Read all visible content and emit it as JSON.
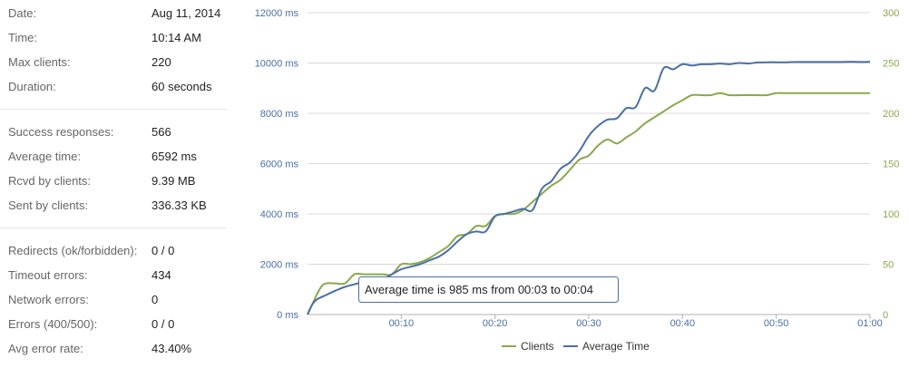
{
  "stats": {
    "general": [
      {
        "label": "Date:",
        "value": "Aug 11, 2014"
      },
      {
        "label": "Time:",
        "value": "10:14 AM"
      },
      {
        "label": "Max clients:",
        "value": "220"
      },
      {
        "label": "Duration:",
        "value": "60 seconds"
      }
    ],
    "responses": [
      {
        "label": "Success responses:",
        "value": "566"
      },
      {
        "label": "Average time:",
        "value": "6592 ms"
      },
      {
        "label": "Rcvd by clients:",
        "value": "9.39 MB"
      },
      {
        "label": "Sent by clients:",
        "value": "336.33 KB"
      }
    ],
    "errors": [
      {
        "label": "Redirects (ok/forbidden):",
        "value": "0 / 0"
      },
      {
        "label": "Timeout errors:",
        "value": "434"
      },
      {
        "label": "Network errors:",
        "value": "0"
      },
      {
        "label": "Errors (400/500):",
        "value": "0 / 0"
      },
      {
        "label": "Avg error rate:",
        "value": "43.40%"
      }
    ]
  },
  "colors": {
    "clients": "#8aa84b",
    "average_time": "#4a6fa5",
    "left_axis_text": "#4a6fa5",
    "right_axis_text": "#8aa84b",
    "grid": "#d9d9d9"
  },
  "chart_data": {
    "type": "line",
    "x_ticks": [
      "00:10",
      "00:20",
      "00:30",
      "00:40",
      "00:50",
      "01:00"
    ],
    "x_tick_values": [
      10,
      20,
      30,
      40,
      50,
      60
    ],
    "xlim": [
      0,
      60
    ],
    "y_left": {
      "ticks": [
        "0 ms",
        "2000 ms",
        "4000 ms",
        "6000 ms",
        "8000 ms",
        "10000 ms",
        "12000 ms"
      ],
      "lim": [
        0,
        12000
      ]
    },
    "y_right": {
      "ticks": [
        "0",
        "50",
        "100",
        "150",
        "200",
        "250",
        "300"
      ],
      "lim": [
        0,
        300
      ]
    },
    "grid": true,
    "legend_position": "bottom",
    "series": [
      {
        "name": "Clients",
        "axis": "right",
        "x": [
          0,
          0.5,
          1,
          1.5,
          2,
          3,
          4,
          5,
          6,
          7,
          8,
          9,
          10,
          11,
          12,
          13,
          14,
          15,
          16,
          17,
          18,
          19,
          20,
          21,
          22,
          23,
          24,
          25,
          26,
          27,
          28,
          29,
          30,
          31,
          32,
          33,
          34,
          35,
          36,
          37,
          38,
          39,
          40,
          41,
          42,
          43,
          44,
          45,
          46,
          47,
          48,
          49,
          50,
          51,
          52,
          53,
          54,
          55,
          56,
          57,
          58,
          59,
          60
        ],
        "y": [
          0,
          10,
          20,
          28,
          31,
          31,
          31,
          40,
          40,
          40,
          40,
          40,
          50,
          50,
          52,
          56,
          62,
          68,
          78,
          80,
          88,
          88,
          98,
          100,
          100,
          104,
          112,
          120,
          128,
          134,
          144,
          154,
          158,
          168,
          174,
          170,
          176,
          182,
          190,
          196,
          202,
          208,
          213,
          218,
          218,
          218,
          220,
          218,
          218,
          218,
          218,
          218,
          220,
          220,
          220,
          220,
          220,
          220,
          220,
          220,
          220,
          220,
          220
        ]
      },
      {
        "name": "Average Time",
        "axis": "left",
        "x": [
          0,
          0.5,
          1,
          2,
          3,
          4,
          5,
          6,
          7,
          8,
          9,
          10,
          11,
          12,
          13,
          14,
          15,
          16,
          17,
          18,
          19,
          20,
          21,
          22,
          23,
          24,
          25,
          26,
          27,
          28,
          29,
          30,
          31,
          32,
          33,
          34,
          35,
          36,
          37,
          38,
          39,
          40,
          41,
          42,
          43,
          44,
          45,
          46,
          47,
          48,
          49,
          50,
          51,
          52,
          53,
          54,
          55,
          56,
          57,
          58,
          59,
          60
        ],
        "y": [
          0,
          400,
          600,
          780,
          950,
          1100,
          1200,
          1300,
          1350,
          1400,
          1600,
          1800,
          1900,
          2000,
          2150,
          2300,
          2550,
          2900,
          3200,
          3300,
          3300,
          3900,
          4000,
          4100,
          4200,
          4150,
          5000,
          5300,
          5800,
          6050,
          6500,
          7100,
          7500,
          7750,
          7800,
          8200,
          8250,
          9000,
          8900,
          9800,
          9750,
          9950,
          9900,
          9950,
          9950,
          9980,
          9950,
          10000,
          9980,
          10020,
          10030,
          10030,
          10030,
          10040,
          10040,
          10040,
          10040,
          10040,
          10040,
          10050,
          10040,
          10050
        ]
      }
    ],
    "annotations": [
      {
        "text": "Average time is 985 ms from 00:03 to 00:04",
        "series": "Average Time",
        "x_from": 3,
        "x_to": 4,
        "value_ms": 985
      }
    ]
  }
}
